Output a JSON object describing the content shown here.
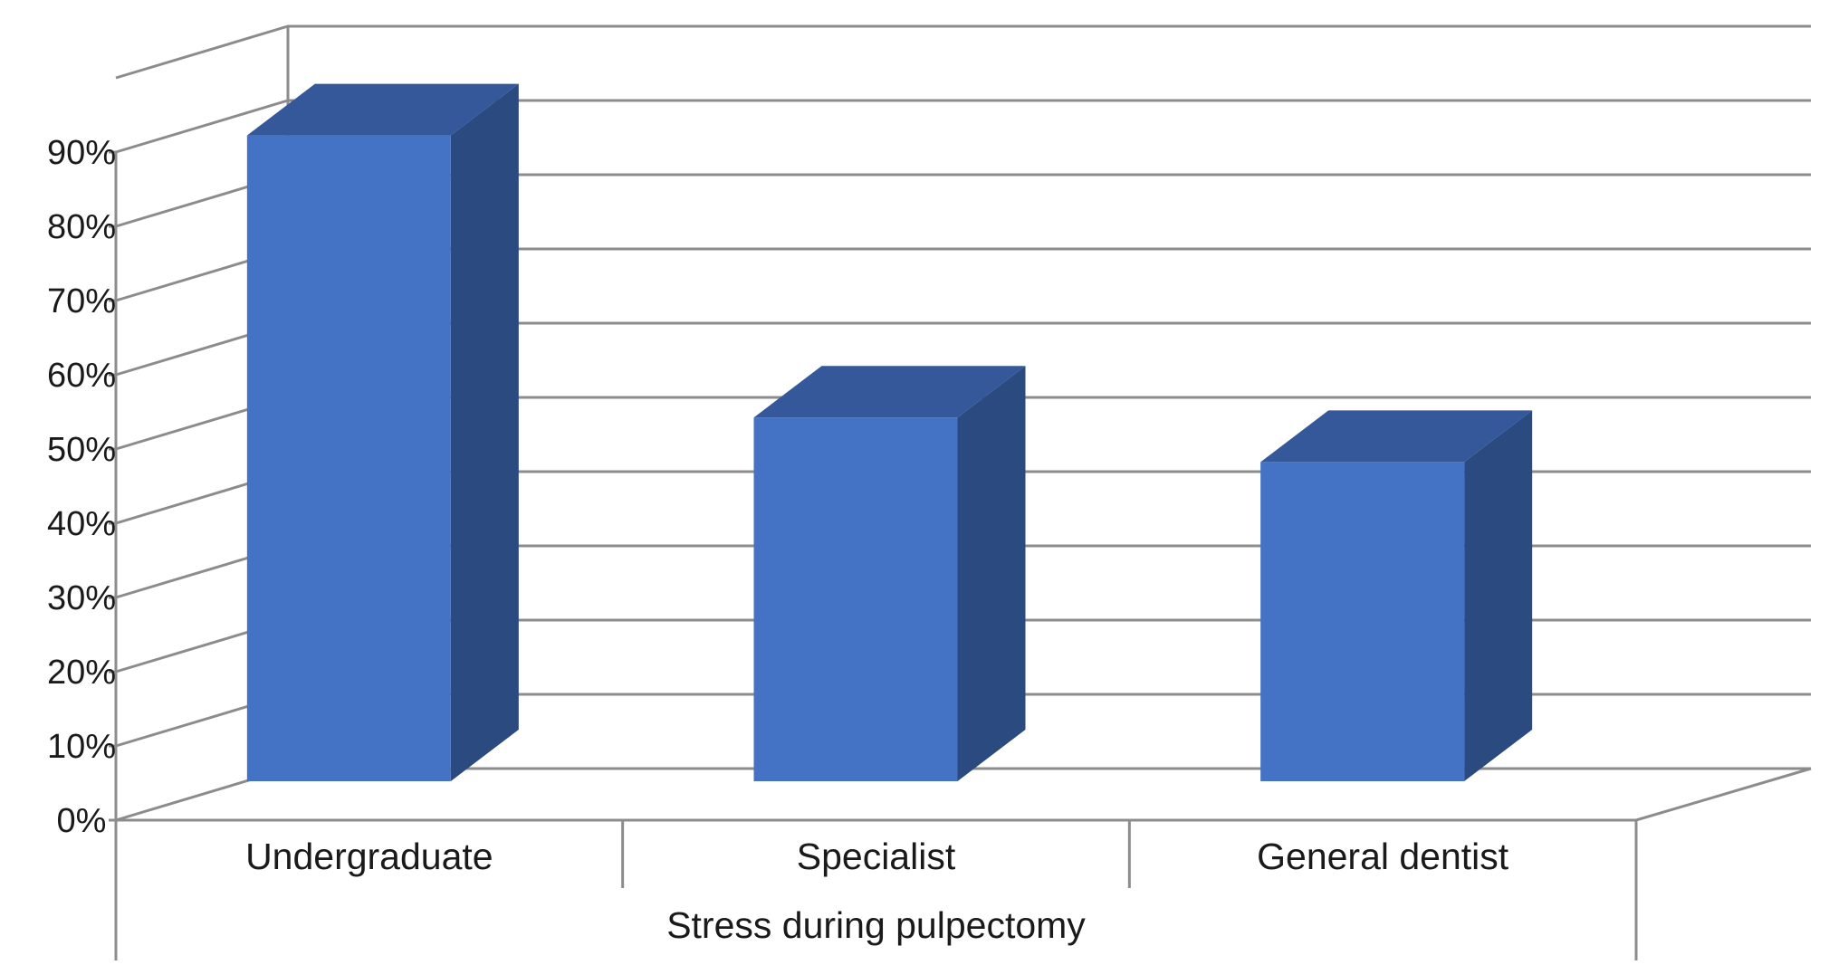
{
  "chart_data": {
    "type": "bar",
    "style": "3d-column",
    "categories": [
      "Undergraduate",
      "Specialist",
      "General dentist"
    ],
    "values": [
      87,
      49,
      43
    ],
    "value_unit": "%",
    "group_label": "Stress during pulpectomy",
    "ylim": [
      0,
      90
    ],
    "y_ticks": [
      "0%",
      "10%",
      "20%",
      "30%",
      "40%",
      "50%",
      "60%",
      "70%",
      "80%",
      "90%"
    ],
    "grid": true,
    "legend": "none",
    "colors": {
      "bar_front": "#4472c4",
      "bar_top": "#34589a",
      "bar_side": "#2b4a80",
      "gridline": "#8c8c8c"
    }
  }
}
